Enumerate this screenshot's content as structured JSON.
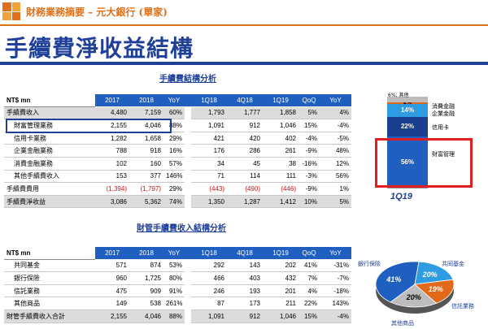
{
  "header": {
    "title": "財務業務摘要 – 元大銀行 (單家)"
  },
  "page_title": "手續費淨收益結構",
  "section1": {
    "title": "手續費結構分析",
    "corner": "NT$ mn",
    "columns": [
      "2017",
      "2018",
      "YoY",
      "1Q18",
      "4Q18",
      "1Q19",
      "QoQ",
      "YoY"
    ],
    "rows": [
      {
        "label": "手續費收入",
        "values": [
          "4,480",
          "7,159",
          "60%",
          "1,793",
          "1,777",
          "1,858",
          "5%",
          "4%"
        ],
        "shade": true,
        "indent": false
      },
      {
        "label": "財富管理業務",
        "values": [
          "2,155",
          "4,046",
          "88%",
          "1,091",
          "912",
          "1,046",
          "15%",
          "-4%"
        ],
        "shade": false,
        "indent": true
      },
      {
        "label": "信用卡業務",
        "values": [
          "1,282",
          "1,658",
          "29%",
          "421",
          "420",
          "402",
          "-4%",
          "-5%"
        ],
        "shade": false,
        "indent": true
      },
      {
        "label": "企業金融業務",
        "values": [
          "788",
          "918",
          "16%",
          "176",
          "286",
          "261",
          "-9%",
          "48%"
        ],
        "shade": false,
        "indent": true
      },
      {
        "label": "消費金融業務",
        "values": [
          "102",
          "160",
          "57%",
          "34",
          "45",
          "38",
          "-16%",
          "12%"
        ],
        "shade": false,
        "indent": true
      },
      {
        "label": "其他手續費收入",
        "values": [
          "153",
          "377",
          "146%",
          "71",
          "114",
          "111",
          "-3%",
          "56%"
        ],
        "shade": false,
        "indent": true
      },
      {
        "label": "手續費費用",
        "values": [
          "(1,394)",
          "(1,797)",
          "29%",
          "(443)",
          "(490)",
          "(446)",
          "-9%",
          "1%"
        ],
        "shade": false,
        "indent": false,
        "red": [
          0,
          1,
          3,
          4,
          5
        ]
      },
      {
        "label": "手續費淨收益",
        "values": [
          "3,086",
          "5,362",
          "74%",
          "1,350",
          "1,287",
          "1,412",
          "10%",
          "5%"
        ],
        "shade": true,
        "indent": false
      }
    ]
  },
  "bar_chart": {
    "x_label": "1Q19",
    "segments": [
      {
        "label": "財富管理",
        "value": "56%",
        "color": "#1f5fbf"
      },
      {
        "label": "信用卡",
        "value": "22%",
        "color": "#1a3f8f"
      },
      {
        "label": "企業金融",
        "value": "14%",
        "color": "#2f9be0"
      },
      {
        "label": "消費金融",
        "value": "2%",
        "color": "#e06a1a"
      },
      {
        "label": "其他",
        "value": "6%",
        "color": "#bdbdbd"
      }
    ],
    "top_label": "6%; 其他"
  },
  "section2": {
    "title": "財管手續費收入結構分析",
    "corner": "NT$ mn",
    "columns": [
      "2017",
      "2018",
      "YoY",
      "1Q18",
      "4Q18",
      "1Q19",
      "QoQ",
      "YoY"
    ],
    "rows": [
      {
        "label": "共同基金",
        "values": [
          "571",
          "874",
          "53%",
          "292",
          "143",
          "202",
          "41%",
          "-31%"
        ],
        "shade": false,
        "indent": true
      },
      {
        "label": "銀行保險",
        "values": [
          "960",
          "1,725",
          "80%",
          "466",
          "403",
          "432",
          "7%",
          "-7%"
        ],
        "shade": false,
        "indent": true
      },
      {
        "label": "信託業務",
        "values": [
          "475",
          "909",
          "91%",
          "246",
          "193",
          "201",
          "4%",
          "-18%"
        ],
        "shade": false,
        "indent": true
      },
      {
        "label": "其他商品",
        "values": [
          "149",
          "538",
          "261%",
          "87",
          "173",
          "211",
          "22%",
          "143%"
        ],
        "shade": false,
        "indent": true
      },
      {
        "label": "財管手續費收入合計",
        "values": [
          "2,155",
          "4,046",
          "88%",
          "1,091",
          "912",
          "1,046",
          "15%",
          "-4%"
        ],
        "shade": true,
        "indent": false
      }
    ]
  },
  "pie_chart": {
    "slices": [
      {
        "label": "銀行保險",
        "value": "41%",
        "color": "#1f5fbf"
      },
      {
        "label": "共同基金",
        "value": "20%",
        "color": "#2f9be0"
      },
      {
        "label": "信託業務",
        "value": "19%",
        "color": "#e06a1a"
      },
      {
        "label": "其他商品",
        "value": "20%",
        "color": "#bdbdbd"
      }
    ]
  },
  "chart_data": [
    {
      "type": "bar",
      "categories": [
        "1Q19"
      ],
      "series": [
        {
          "name": "財富管理",
          "values": [
            56
          ]
        },
        {
          "name": "信用卡",
          "values": [
            22
          ]
        },
        {
          "name": "企業金融",
          "values": [
            14
          ]
        },
        {
          "name": "消費金融",
          "values": [
            2
          ]
        },
        {
          "name": "其他",
          "values": [
            6
          ]
        }
      ]
    },
    {
      "type": "pie",
      "categories": [
        "銀行保險",
        "共同基金",
        "信託業務",
        "其他商品"
      ],
      "values": [
        41,
        20,
        19,
        20
      ]
    }
  ]
}
